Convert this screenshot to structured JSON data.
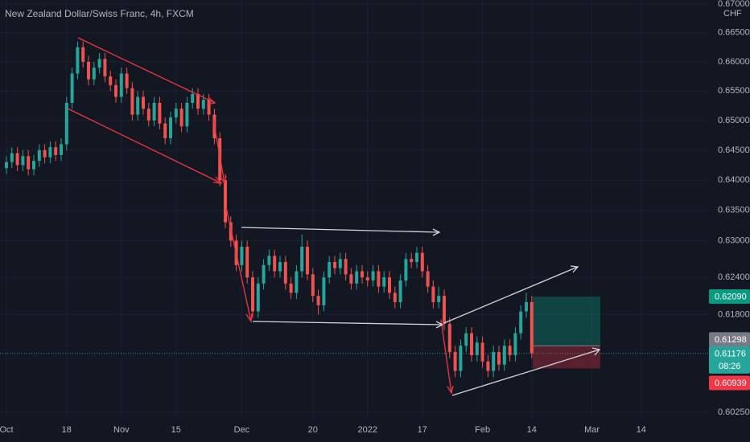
{
  "chart_data": {
    "type": "candlestick",
    "title": "New Zealand Dollar/Swiss Franc, 4h, FXCM",
    "unit": "CHF",
    "log_scale": true,
    "grid": true,
    "up_color": "#26a69a",
    "down_color": "#ef5350",
    "categories": [
      "Oct",
      null,
      null,
      null,
      null,
      null,
      null,
      null,
      null,
      null,
      null,
      "18",
      null,
      null,
      null,
      null,
      null,
      null,
      null,
      null,
      null,
      "Nov",
      null,
      null,
      null,
      null,
      null,
      null,
      null,
      null,
      null,
      "15",
      null,
      null,
      null,
      null,
      null,
      null,
      null,
      null,
      null,
      null,
      null,
      "Dec",
      null,
      null,
      null,
      null,
      null,
      null,
      null,
      null,
      null,
      null,
      null,
      null,
      "20",
      null,
      null,
      null,
      null,
      null,
      null,
      null,
      null,
      null,
      "2022",
      null,
      null,
      null,
      null,
      null,
      null,
      null,
      null,
      null,
      "17",
      null,
      null,
      null,
      null,
      null,
      null,
      null,
      null,
      null,
      null,
      "Feb",
      null,
      null,
      null,
      null,
      null,
      null,
      null,
      null,
      "14",
      null,
      null,
      null,
      null,
      null,
      null,
      null,
      null,
      null,
      null,
      "Mar",
      null,
      null,
      null,
      null,
      null,
      null,
      null,
      null,
      "14"
    ],
    "open": [
      0.642,
      0.643,
      0.6445,
      0.6425,
      0.644,
      0.6418,
      0.6432,
      0.645,
      0.6438,
      0.6455,
      0.6442,
      0.646,
      0.653,
      0.658,
      0.6625,
      0.66,
      0.657,
      0.659,
      0.6605,
      0.6575,
      0.656,
      0.654,
      0.658,
      0.6555,
      0.651,
      0.654,
      0.652,
      0.65,
      0.653,
      0.6495,
      0.647,
      0.6505,
      0.652,
      0.649,
      0.653,
      0.6545,
      0.652,
      0.6535,
      0.651,
      0.647,
      0.64,
      0.633,
      0.63,
      0.626,
      0.629,
      0.624,
      0.6185,
      0.623,
      0.626,
      0.6275,
      0.625,
      0.6265,
      0.623,
      0.6215,
      0.625,
      0.629,
      0.6245,
      0.621,
      0.6195,
      0.624,
      0.6265,
      0.6255,
      0.627,
      0.6245,
      0.623,
      0.625,
      0.624,
      0.6235,
      0.625,
      0.6225,
      0.624,
      0.6215,
      0.62,
      0.6235,
      0.627,
      0.6265,
      0.628,
      0.625,
      0.6225,
      0.62,
      0.621,
      0.6165,
      0.612,
      0.609,
      0.613,
      0.615,
      0.6115,
      0.6135,
      0.6105,
      0.609,
      0.612,
      0.61,
      0.613,
      0.6115,
      0.615,
      0.6185,
      0.62,
      null,
      null,
      null,
      null,
      null,
      null,
      null,
      null,
      null,
      null,
      null,
      null,
      null,
      null,
      null,
      null,
      null,
      null,
      null,
      null
    ],
    "high": [
      0.644,
      0.6455,
      0.6455,
      0.645,
      0.645,
      0.6442,
      0.646,
      0.646,
      0.6465,
      0.6465,
      0.647,
      0.654,
      0.659,
      0.6635,
      0.6635,
      0.661,
      0.66,
      0.6615,
      0.6615,
      0.6585,
      0.657,
      0.659,
      0.659,
      0.6565,
      0.655,
      0.655,
      0.653,
      0.654,
      0.654,
      0.6505,
      0.6515,
      0.653,
      0.653,
      0.654,
      0.6555,
      0.6555,
      0.6545,
      0.6545,
      0.652,
      0.648,
      0.641,
      0.634,
      0.631,
      0.63,
      0.63,
      0.625,
      0.624,
      0.627,
      0.6285,
      0.6285,
      0.6275,
      0.6275,
      0.624,
      0.626,
      0.631,
      0.63,
      0.6255,
      0.622,
      0.625,
      0.6275,
      0.6275,
      0.628,
      0.628,
      0.6255,
      0.626,
      0.626,
      0.625,
      0.626,
      0.626,
      0.625,
      0.625,
      0.6225,
      0.6245,
      0.628,
      0.628,
      0.629,
      0.629,
      0.626,
      0.6235,
      0.6225,
      0.622,
      0.6175,
      0.613,
      0.614,
      0.616,
      0.616,
      0.6145,
      0.6145,
      0.6115,
      0.613,
      0.613,
      0.614,
      0.614,
      0.616,
      0.6195,
      0.6215,
      0.621,
      null,
      null,
      null,
      null,
      null,
      null,
      null,
      null,
      null,
      null,
      null,
      null,
      null,
      null,
      null,
      null,
      null,
      null,
      null,
      null
    ],
    "low": [
      0.641,
      0.642,
      0.6415,
      0.6415,
      0.6408,
      0.6408,
      0.6422,
      0.6428,
      0.6428,
      0.6432,
      0.6432,
      0.645,
      0.652,
      0.657,
      0.659,
      0.656,
      0.656,
      0.658,
      0.6565,
      0.655,
      0.653,
      0.653,
      0.6545,
      0.65,
      0.65,
      0.651,
      0.649,
      0.649,
      0.6485,
      0.646,
      0.646,
      0.6495,
      0.648,
      0.648,
      0.652,
      0.651,
      0.651,
      0.65,
      0.646,
      0.639,
      0.632,
      0.629,
      0.625,
      0.625,
      0.623,
      0.6175,
      0.6175,
      0.622,
      0.625,
      0.624,
      0.624,
      0.622,
      0.6205,
      0.6205,
      0.624,
      0.6235,
      0.62,
      0.618,
      0.6185,
      0.623,
      0.6245,
      0.6245,
      0.6235,
      0.622,
      0.622,
      0.623,
      0.6225,
      0.6225,
      0.6215,
      0.6215,
      0.6205,
      0.619,
      0.619,
      0.6225,
      0.6255,
      0.6255,
      0.624,
      0.6215,
      0.619,
      0.619,
      0.6155,
      0.611,
      0.608,
      0.608,
      0.612,
      0.6105,
      0.6105,
      0.6095,
      0.608,
      0.608,
      0.609,
      0.609,
      0.6105,
      0.6105,
      0.614,
      0.6175,
      0.611,
      null,
      null,
      null,
      null,
      null,
      null,
      null,
      null,
      null,
      null,
      null,
      null,
      null,
      null,
      null,
      null,
      null,
      null,
      null,
      null
    ],
    "close": [
      0.643,
      0.6445,
      0.6425,
      0.644,
      0.6418,
      0.6432,
      0.645,
      0.6438,
      0.6455,
      0.6442,
      0.646,
      0.653,
      0.658,
      0.6625,
      0.66,
      0.657,
      0.659,
      0.6605,
      0.6575,
      0.656,
      0.654,
      0.658,
      0.6555,
      0.651,
      0.654,
      0.652,
      0.65,
      0.653,
      0.6495,
      0.647,
      0.6505,
      0.652,
      0.649,
      0.653,
      0.6545,
      0.652,
      0.6535,
      0.651,
      0.647,
      0.64,
      0.633,
      0.63,
      0.626,
      0.629,
      0.624,
      0.6185,
      0.623,
      0.626,
      0.6275,
      0.625,
      0.6265,
      0.623,
      0.6215,
      0.625,
      0.629,
      0.6245,
      0.621,
      0.6195,
      0.624,
      0.6265,
      0.6255,
      0.627,
      0.6245,
      0.623,
      0.625,
      0.624,
      0.6235,
      0.625,
      0.6225,
      0.624,
      0.6215,
      0.62,
      0.6235,
      0.627,
      0.6265,
      0.628,
      0.625,
      0.6225,
      0.62,
      0.621,
      0.6165,
      0.612,
      0.609,
      0.613,
      0.615,
      0.6115,
      0.6135,
      0.6105,
      0.609,
      0.612,
      0.61,
      0.613,
      0.6115,
      0.615,
      0.6185,
      0.62,
      0.6118,
      null,
      null,
      null,
      null,
      null,
      null,
      null,
      null,
      null,
      null,
      null,
      null,
      null,
      null,
      null,
      null,
      null,
      null,
      null,
      null
    ],
    "ylim": [
      0.6016,
      0.6707
    ],
    "yticks": [
      {
        "value": 0.67,
        "label": "0.67000"
      },
      {
        "value": 0.665,
        "label": "0.66500"
      },
      {
        "value": 0.66,
        "label": "0.66000"
      },
      {
        "value": 0.655,
        "label": "0.65500"
      },
      {
        "value": 0.65,
        "label": "0.65000"
      },
      {
        "value": 0.645,
        "label": "0.64500"
      },
      {
        "value": 0.64,
        "label": "0.64000"
      },
      {
        "value": 0.635,
        "label": "0.63500"
      },
      {
        "value": 0.63,
        "label": "0.63000"
      },
      {
        "value": 0.624,
        "label": "0.62400"
      },
      {
        "value": 0.618,
        "label": "0.61800"
      },
      {
        "value": 0.6025,
        "label": "0.60250"
      }
    ],
    "price_labels": [
      {
        "value": 0.6209,
        "label": "0.62090",
        "color": "#089981"
      },
      {
        "value": 0.61298,
        "label": "0.61298",
        "color": "#787b86"
      },
      {
        "value": 0.61176,
        "label": "0.61176",
        "countdown": "08:26",
        "color": "#26a69a"
      },
      {
        "value": 0.60939,
        "label": "0.60939",
        "color": "#f23645"
      }
    ]
  }
}
